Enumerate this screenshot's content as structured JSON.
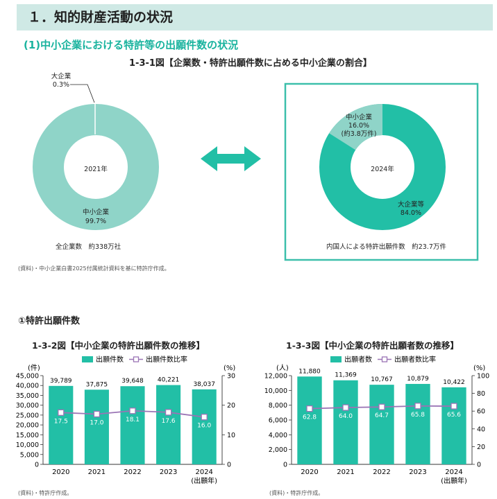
{
  "section": {
    "title": "１．知的財産活動の状況"
  },
  "subsection": {
    "title": "(1)中小企業における特許等の出願件数の状況"
  },
  "figure1": {
    "title": "1-3-1図【企業数・特許出願件数に占める中小企業の割合】",
    "source": "(資料)・中小企業白書2025付属統計資料を基に特許庁作成。",
    "left": {
      "center": "2021年",
      "caption": "全企業数　約338万社",
      "large_label": "大企業",
      "large_pct": "0.3%",
      "sme_label": "中小企業",
      "sme_pct": "99.7%"
    },
    "right": {
      "center": "2024年",
      "caption": "内国人による特許出願件数　約23.7万件",
      "sme_label": "中小企業",
      "sme_pct": "16.0%",
      "sme_count": "(約3.8万件)",
      "large_label": "大企業等",
      "large_pct": "84.0%"
    }
  },
  "patent_heading": "①特許出願件数",
  "colors": {
    "teal": "#22bfa6",
    "light_teal": "#8fd4c8",
    "line": "#9a74b5",
    "frame": "#3cbfab"
  },
  "chart_data": [
    {
      "type": "bar",
      "title": "1-3-2図【中小企業の特許出願件数の推移】",
      "categories": [
        "2020",
        "2021",
        "2022",
        "2023",
        "2024"
      ],
      "x_suffix": "(出願年)",
      "series": [
        {
          "name": "出願件数",
          "axis": "left",
          "values": [
            39789,
            37875,
            39648,
            40221,
            38037
          ],
          "labels": [
            "39,789",
            "37,875",
            "39,648",
            "40,221",
            "38,037"
          ]
        },
        {
          "name": "出願件数比率",
          "axis": "right",
          "type": "line",
          "values": [
            17.5,
            17.0,
            18.1,
            17.6,
            16.0
          ],
          "labels": [
            "17.5",
            "17.0",
            "18.1",
            "17.6",
            "16.0"
          ]
        }
      ],
      "ylabel_left": "(件)",
      "ylabel_right": "(%)",
      "ylim_left": [
        0,
        45000
      ],
      "ylim_right": [
        0,
        30
      ],
      "yticks_left": [
        "0",
        "5,000",
        "10,000",
        "15,000",
        "20,000",
        "25,000",
        "30,000",
        "35,000",
        "40,000",
        "45,000"
      ],
      "yticks_right": [
        "0",
        "10",
        "20",
        "30"
      ],
      "source": "(資料)・特許庁作成。"
    },
    {
      "type": "bar",
      "title": "1-3-3図【中小企業の特許出願者数の推移】",
      "categories": [
        "2020",
        "2021",
        "2022",
        "2023",
        "2024"
      ],
      "x_suffix": "(出願年)",
      "series": [
        {
          "name": "出願者数",
          "axis": "left",
          "values": [
            11880,
            11369,
            10767,
            10879,
            10422
          ],
          "labels": [
            "11,880",
            "11,369",
            "10,767",
            "10,879",
            "10,422"
          ]
        },
        {
          "name": "出願者数比率",
          "axis": "right",
          "type": "line",
          "values": [
            62.8,
            64.0,
            64.7,
            65.8,
            65.6
          ],
          "labels": [
            "62.8",
            "64.0",
            "64.7",
            "65.8",
            "65.6"
          ]
        }
      ],
      "ylabel_left": "(人)",
      "ylabel_right": "(%)",
      "ylim_left": [
        0,
        12000
      ],
      "ylim_right": [
        0,
        100
      ],
      "yticks_left": [
        "0",
        "2,000",
        "4,000",
        "6,000",
        "8,000",
        "10,000",
        "12,000"
      ],
      "yticks_right": [
        "0",
        "20",
        "40",
        "60",
        "80",
        "100"
      ],
      "source": "(資料)・特許庁作成。"
    }
  ]
}
